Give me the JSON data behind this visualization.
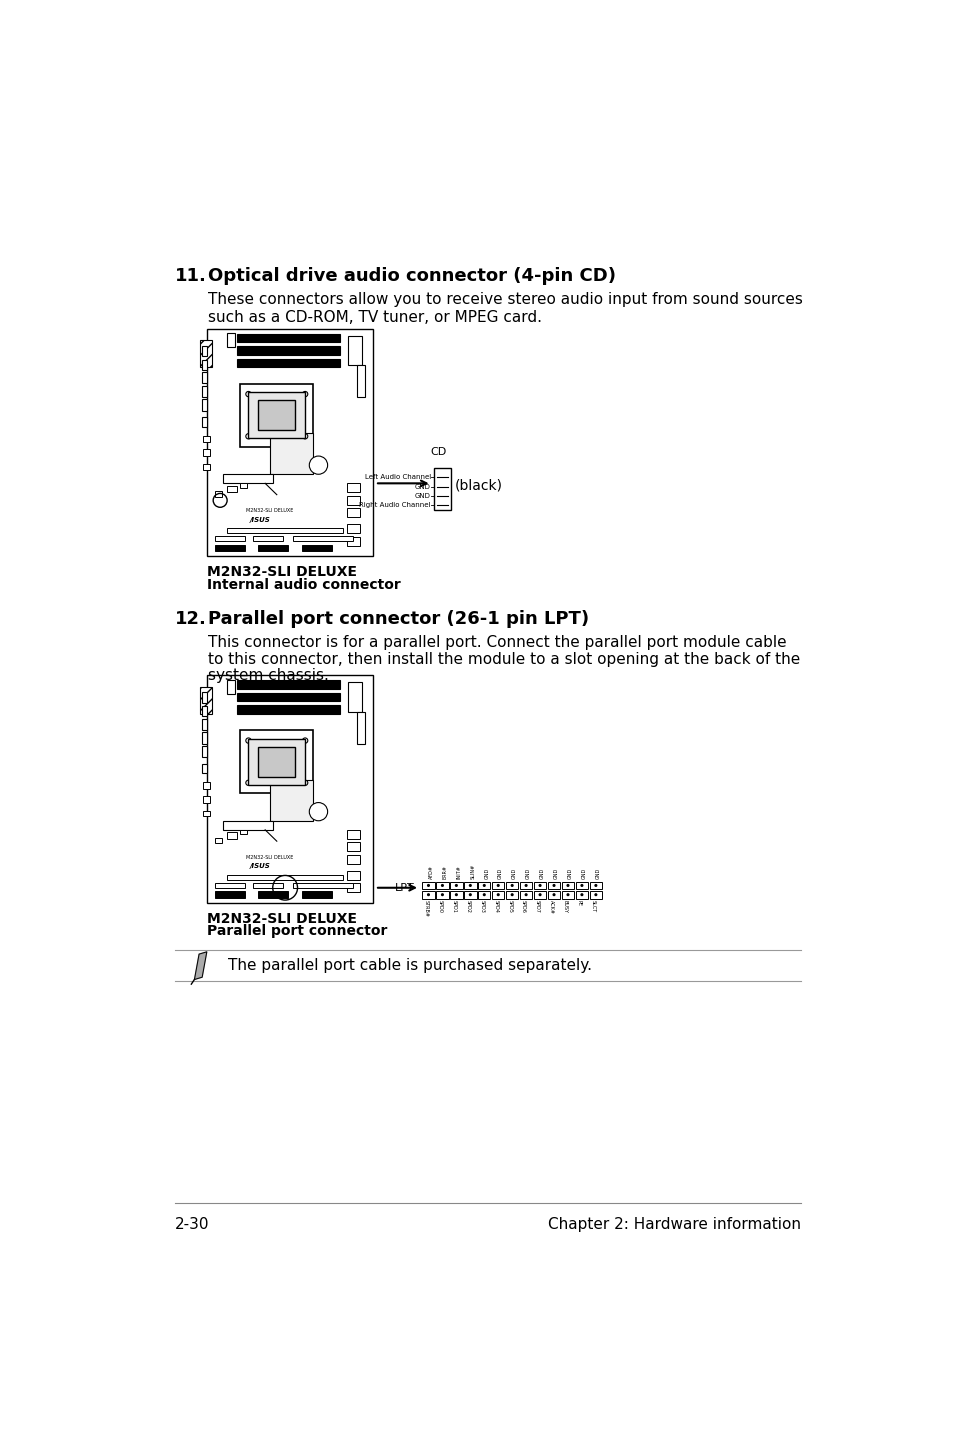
{
  "bg_color": "#ffffff",
  "section11_heading": "11.   Optical drive audio connector (4-pin CD)",
  "section11_body1": "These connectors allow you to receive stereo audio input from sound sources",
  "section11_body2": "such as a CD-ROM, TV tuner, or MPEG card.",
  "section11_board_label1": "M2N32-SLI DELUXE",
  "section11_board_label2": "Internal audio connector",
  "cd_label": "CD",
  "black_label": "(black)",
  "cd_pins": [
    "Right Audio Channel",
    "GND",
    "GND",
    "Left Audio Channel"
  ],
  "section12_heading": "12.   Parallel port connector (26-1 pin LPT)",
  "section12_body1": "This connector is for a parallel port. Connect the parallel port module cable",
  "section12_body2": "to this connector, then install the module to a slot opening at the back of the",
  "section12_body3": "system chassis.",
  "section12_board_label1": "M2N32-SLI DELUXE",
  "section12_board_label2": "Parallel port connector",
  "lpt_label": "LPT",
  "lpt_pins_top": [
    "AFD#",
    "ERR#",
    "INIT#",
    "SLIN#",
    "GND",
    "GND",
    "GND",
    "GND",
    "GND",
    "GND",
    "GND",
    "GND",
    "GND"
  ],
  "lpt_pins_bot": [
    "STRB#",
    "SPD0",
    "SPD1",
    "SPD2",
    "SPD3",
    "SPD4",
    "SPD5",
    "SPD6",
    "SPD7",
    "ACK#",
    "BUSY",
    "PE",
    "SLCT"
  ],
  "note_text": "The parallel port cable is purchased separately.",
  "footer_left": "2-30",
  "footer_right": "Chapter 2: Hardware information"
}
